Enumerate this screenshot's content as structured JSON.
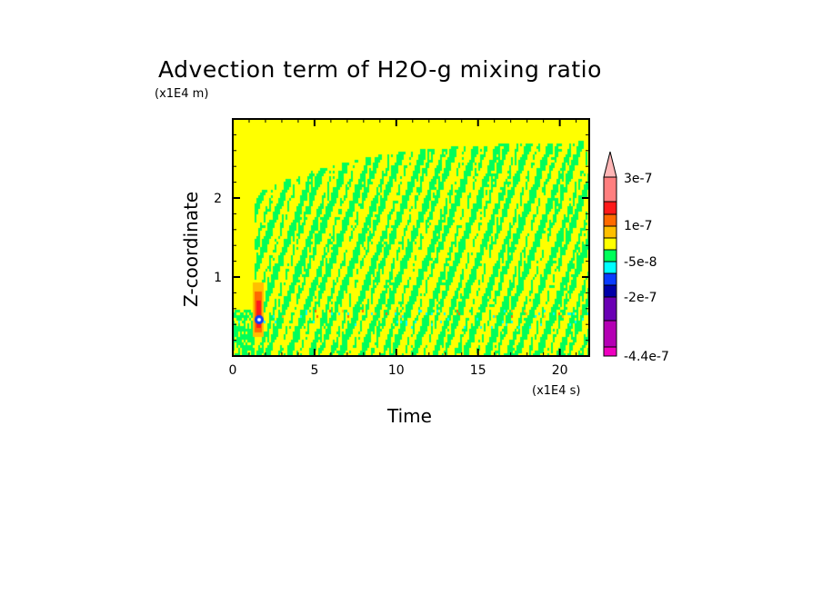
{
  "chart_data": {
    "type": "heatmap",
    "title": "Advection term of H2O-g mixing ratio",
    "xlabel": "Time",
    "ylabel": "Z-coordinate",
    "x_unit": "(x1E4 s)",
    "y_unit": "(x1E4 m)",
    "xlim": [
      0,
      21.8
    ],
    "ylim": [
      0,
      3.0
    ],
    "x_ticks": [
      0,
      5,
      10,
      15,
      20
    ],
    "x_tick_labels": [
      "0",
      "5",
      "10",
      "15",
      "20"
    ],
    "y_ticks": [
      1,
      2
    ],
    "y_tick_labels": [
      "1",
      "2"
    ],
    "colorbar": {
      "tick_labels": [
        "3e-7",
        "1e-7",
        "-5e-8",
        "-2e-7",
        "-4.4e-7"
      ],
      "extend": "max",
      "colors_top_to_bottom": [
        "#ff7f7f",
        "#ff1a1a",
        "#ff6a00",
        "#ffbf00",
        "#ffff00",
        "#00ff5a",
        "#00ffff",
        "#0a3cff",
        "#0000a8",
        "#6a00b4",
        "#b400b4",
        "#ee00c0"
      ],
      "extend_color": "#ffb6b6"
    },
    "background_level_color": "#ffff00"
  }
}
